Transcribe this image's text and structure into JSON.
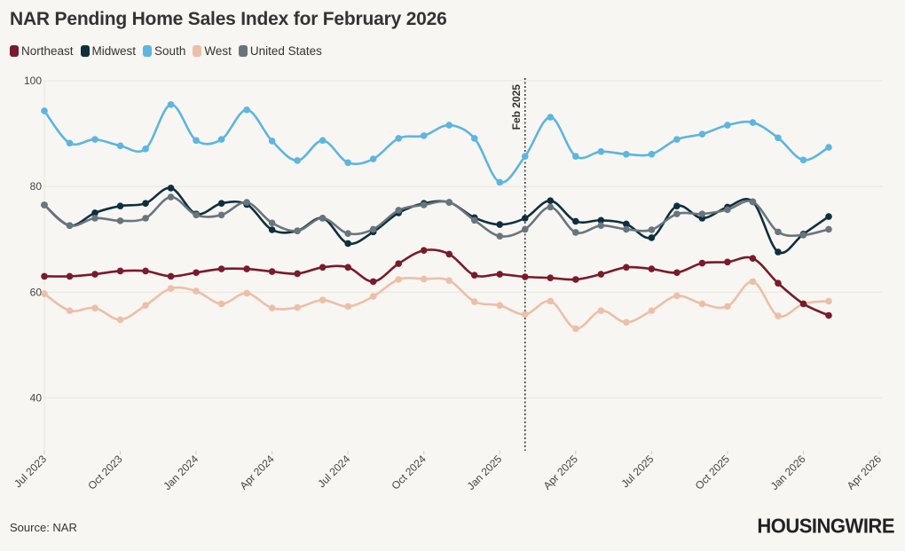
{
  "title": "NAR Pending Home Sales Index for February 2026",
  "source": "Source: NAR",
  "logo": "HOUSINGWIRE",
  "chart_data": {
    "type": "line",
    "title": "NAR Pending Home Sales Index for February 2026",
    "xlabel": "",
    "ylabel": "",
    "ylim": [
      30,
      100
    ],
    "yticks": [
      "40",
      "60",
      "80",
      "100"
    ],
    "xticks": [
      "Jul 2023",
      "Oct 2023",
      "Jan 2024",
      "Apr 2024",
      "Jul 2024",
      "Oct 2024",
      "Jan 2025",
      "Apr 2025",
      "Jul 2025",
      "Oct 2025",
      "Jan 2026",
      "Apr 2026"
    ],
    "x_start": "2023-07",
    "x_end_tick": "2026-04",
    "grid": "horizontal",
    "legend": "top-left",
    "annotation": {
      "label": "Feb 2025",
      "x": "2025-02",
      "style": "dotted vertical line"
    },
    "x": [
      "2023-07",
      "2023-08",
      "2023-09",
      "2023-10",
      "2023-11",
      "2023-12",
      "2024-01",
      "2024-02",
      "2024-03",
      "2024-04",
      "2024-05",
      "2024-06",
      "2024-07",
      "2024-08",
      "2024-09",
      "2024-10",
      "2024-11",
      "2024-12",
      "2025-01",
      "2025-02",
      "2025-03",
      "2025-04",
      "2025-05",
      "2025-06",
      "2025-07",
      "2025-08",
      "2025-09",
      "2025-10",
      "2025-11",
      "2025-12",
      "2026-01",
      "2026-02"
    ],
    "series": [
      {
        "name": "Northeast",
        "color": "#7a1a2a",
        "values": [
          63.0,
          63.0,
          63.4,
          64.0,
          64.0,
          63.0,
          63.7,
          64.4,
          64.4,
          63.9,
          63.5,
          64.7,
          64.7,
          62.0,
          65.4,
          67.9,
          67.2,
          63.2,
          63.4,
          62.9,
          62.7,
          62.4,
          63.4,
          64.7,
          64.4,
          63.7,
          65.5,
          65.7,
          66.4,
          61.7,
          57.8,
          55.6
        ]
      },
      {
        "name": "Midwest",
        "color": "#0d2f3f",
        "values": [
          76.5,
          72.6,
          75.0,
          76.3,
          76.8,
          79.7,
          74.8,
          76.8,
          76.6,
          71.8,
          71.6,
          74.0,
          69.2,
          71.4,
          75.0,
          76.8,
          77.0,
          74.1,
          72.8,
          74.0,
          77.3,
          73.4,
          73.6,
          72.9,
          70.3,
          76.3,
          74.0,
          76.1,
          77.1,
          67.6,
          71.0,
          74.3
        ]
      },
      {
        "name": "South",
        "color": "#5db5e0",
        "values": [
          94.3,
          88.2,
          88.9,
          87.7,
          87.1,
          95.5,
          88.7,
          88.9,
          94.5,
          88.6,
          84.9,
          88.7,
          84.5,
          85.2,
          89.1,
          89.6,
          91.6,
          89.1,
          80.8,
          85.7,
          93.1,
          85.7,
          86.6,
          86.1,
          86.1,
          88.9,
          89.9,
          91.6,
          92.1,
          89.2,
          85.0,
          87.4
        ]
      },
      {
        "name": "West",
        "color": "#ecbfa8",
        "values": [
          59.7,
          56.5,
          57.0,
          54.8,
          57.5,
          60.7,
          60.2,
          57.8,
          59.8,
          57.0,
          57.1,
          58.5,
          57.3,
          59.2,
          62.4,
          62.5,
          62.2,
          58.2,
          57.5,
          55.8,
          58.3,
          53.1,
          56.5,
          54.3,
          56.5,
          59.3,
          57.8,
          57.3,
          62.0,
          55.5,
          57.8,
          58.3
        ]
      },
      {
        "name": "United States",
        "color": "#69757d",
        "values": [
          76.5,
          72.6,
          74.0,
          73.5,
          74.0,
          78.0,
          74.6,
          74.6,
          77.0,
          73.1,
          71.6,
          74.0,
          71.1,
          71.9,
          75.5,
          76.5,
          77.0,
          73.6,
          70.6,
          71.9,
          76.1,
          71.3,
          72.6,
          71.9,
          71.8,
          74.8,
          74.8,
          75.6,
          77.1,
          71.4,
          70.8,
          71.9
        ]
      }
    ]
  }
}
